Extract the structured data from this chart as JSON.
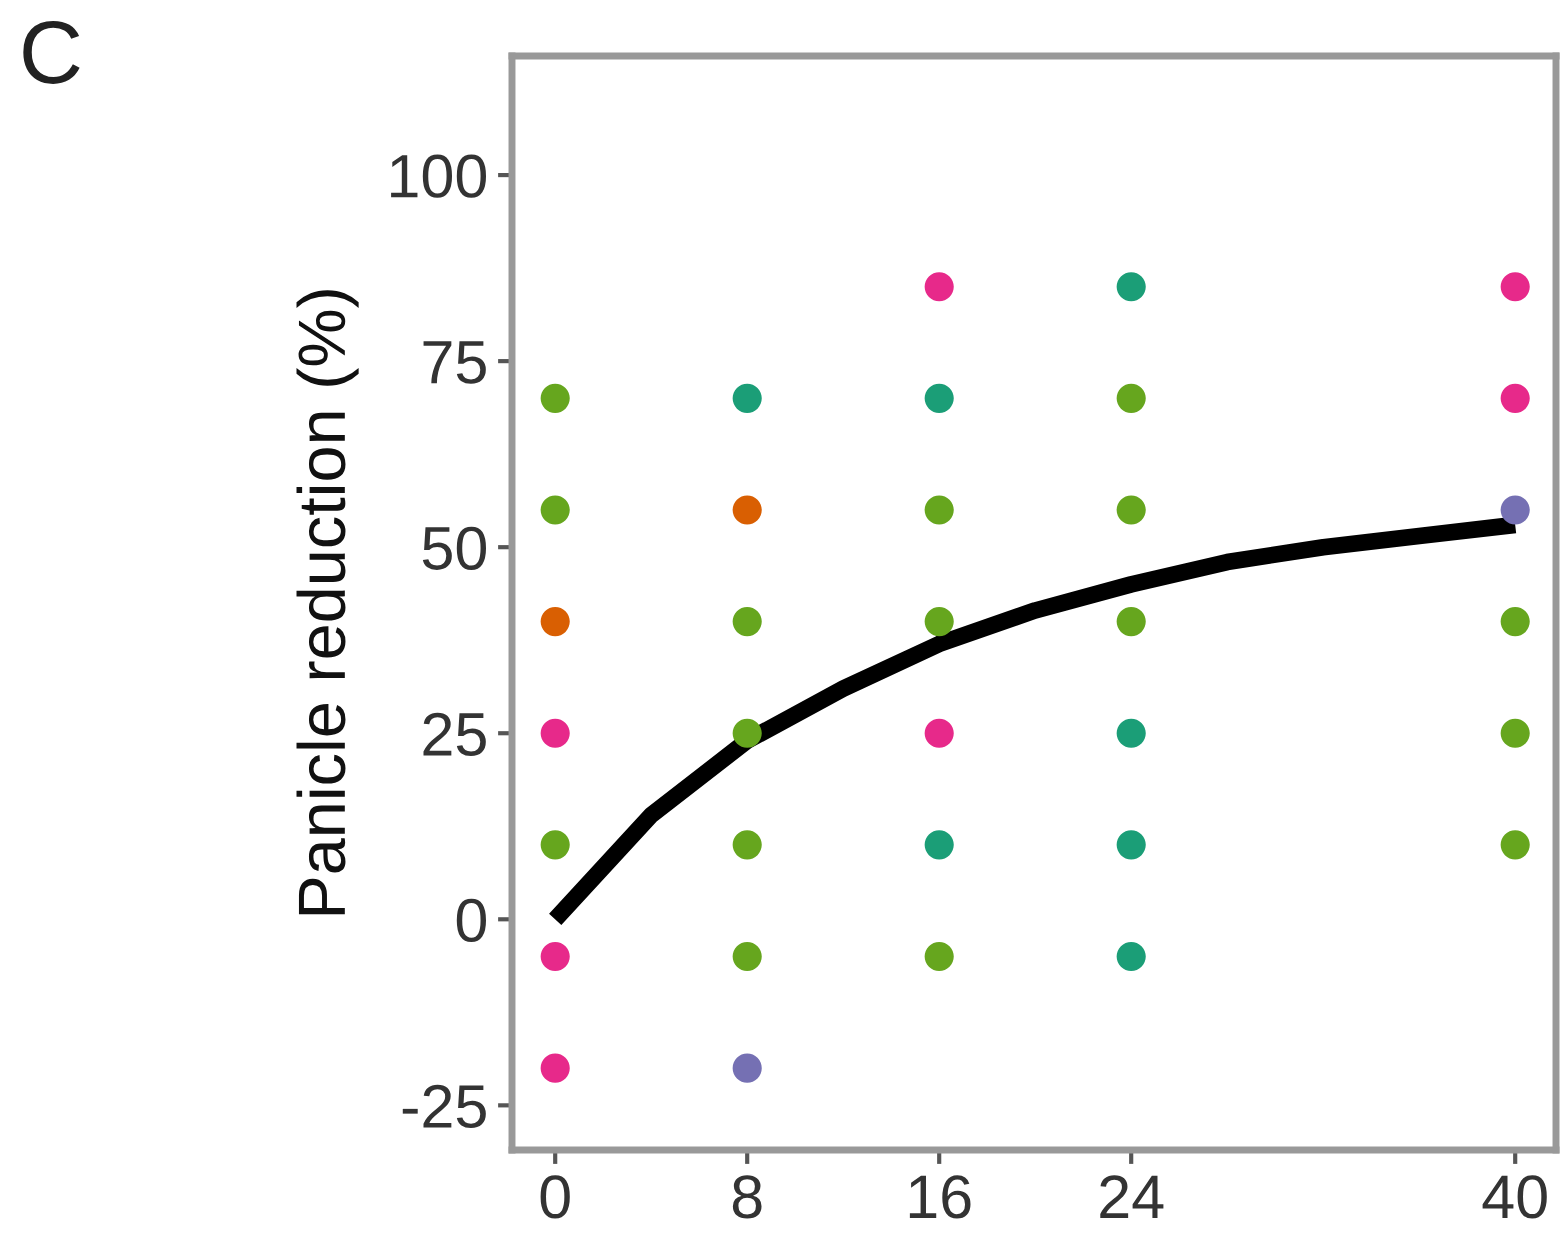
{
  "chart_data": {
    "type": "scatter",
    "ylabel": "Panicle reduction (%)",
    "annotations": [
      "C"
    ],
    "xlim": [
      -1.8,
      41.7
    ],
    "xticks": [
      0,
      8,
      16,
      24,
      40
    ],
    "ylim": [
      -31,
      116
    ],
    "yticks": [
      -25,
      0,
      25,
      50,
      75,
      100
    ],
    "grid": false,
    "legend": false,
    "marker": "circle",
    "series": [
      {
        "color": "#e7298a",
        "x": [
          0,
          0,
          0,
          16,
          16,
          40,
          40
        ],
        "values": [
          25,
          -5,
          -20,
          85,
          25,
          85,
          70
        ]
      },
      {
        "color": "#66a61e",
        "x": [
          0,
          0,
          0,
          8,
          8,
          8,
          8,
          16,
          16,
          16,
          24,
          24,
          24,
          40,
          40,
          40
        ],
        "values": [
          70,
          55,
          10,
          40,
          25,
          10,
          -5,
          55,
          40,
          -5,
          70,
          55,
          40,
          40,
          25,
          10
        ]
      },
      {
        "color": "#1b9e77",
        "x": [
          8,
          16,
          16,
          24,
          24,
          24,
          24
        ],
        "values": [
          70,
          70,
          10,
          85,
          25,
          10,
          -5
        ]
      },
      {
        "color": "#d95f02",
        "x": [
          0,
          8
        ],
        "values": [
          40,
          55
        ]
      },
      {
        "color": "#7570b3",
        "x": [
          8,
          40
        ],
        "values": [
          -20,
          55
        ]
      },
      {
        "type": "line",
        "color": "#000000",
        "marker": "none",
        "line_style": "solid",
        "x": [
          0,
          4,
          8,
          12,
          16,
          20,
          24,
          28,
          32,
          36,
          40
        ],
        "values": [
          0,
          14,
          24,
          31,
          37,
          41.5,
          45,
          48,
          50,
          51.5,
          53
        ]
      }
    ]
  }
}
